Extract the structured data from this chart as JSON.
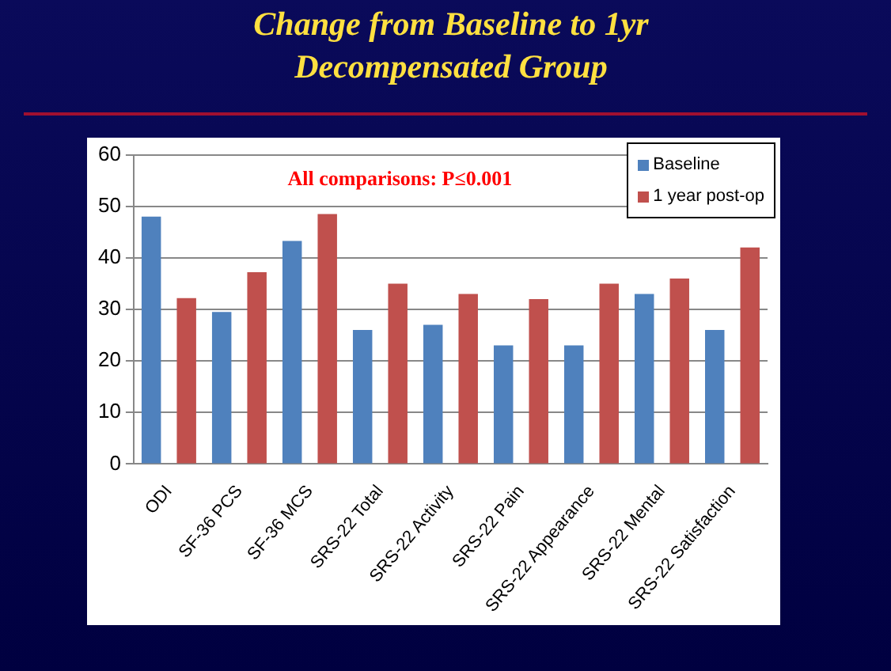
{
  "chart_data": {
    "type": "bar",
    "title": "Change from Baseline to 1yr Decompensated Group",
    "categories": [
      "ODI",
      "SF-36 PCS",
      "SF-36 MCS",
      "SRS-22 Total",
      "SRS-22 Activity",
      "SRS-22 Pain",
      "SRS-22 Appearance",
      "SRS-22 Mental",
      "SRS-22 Satisfaction"
    ],
    "series": [
      {
        "name": "Baseline",
        "color": "#4f81bd",
        "values": [
          48,
          29.5,
          43.3,
          26,
          27,
          23,
          23,
          33,
          26
        ]
      },
      {
        "name": "1 year post-op",
        "color": "#c0504d",
        "values": [
          32.2,
          37.2,
          48.5,
          35,
          33,
          32,
          35,
          36,
          42
        ]
      }
    ],
    "ylim": [
      0,
      60
    ],
    "yticks": [
      0,
      10,
      20,
      30,
      40,
      50,
      60
    ],
    "grid": "y",
    "legend": "top right",
    "annotations": [
      "All comparisons: P≤0.001"
    ]
  }
}
